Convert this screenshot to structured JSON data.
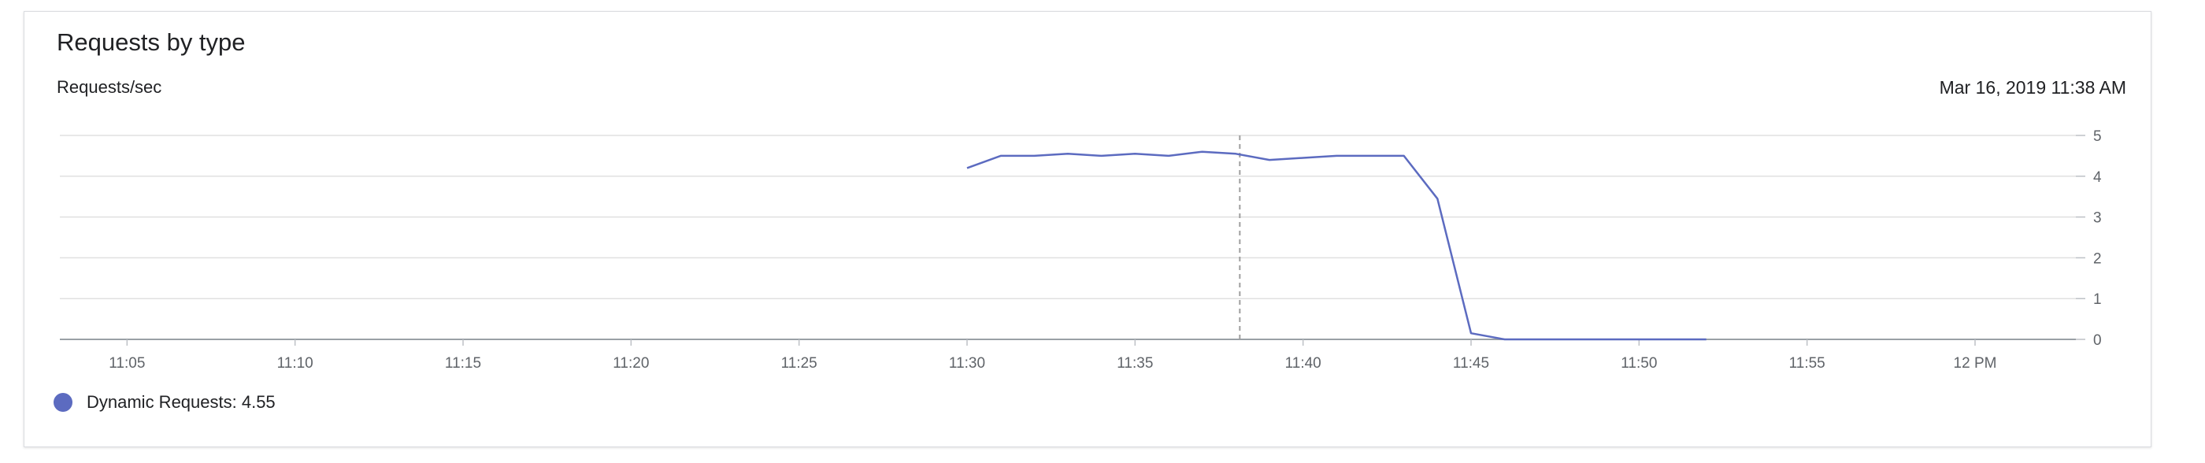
{
  "panel": {
    "title": "Requests by type",
    "timestamp": "Mar 16, 2019 11:38 AM",
    "legend_label": "Dynamic Requests: 4.55"
  },
  "chart_data": {
    "type": "line",
    "title": "Requests by type",
    "ylabel": "Requests/sec",
    "xlabel": "",
    "x_ticks": [
      "11:05",
      "11:10",
      "11:15",
      "11:20",
      "11:25",
      "11:30",
      "11:35",
      "11:40",
      "11:45",
      "11:50",
      "11:55",
      "12 PM"
    ],
    "y_ticks": [
      "0",
      "1",
      "2",
      "3",
      "4",
      "5"
    ],
    "xlim": [
      "11:03",
      "12:03"
    ],
    "ylim": [
      0,
      5
    ],
    "grid": true,
    "cursor_time": "11:38",
    "series": [
      {
        "name": "Dynamic Requests",
        "color": "#5c6bc0",
        "x": [
          "11:30",
          "11:31",
          "11:32",
          "11:33",
          "11:34",
          "11:35",
          "11:36",
          "11:37",
          "11:38",
          "11:39",
          "11:40",
          "11:41",
          "11:42",
          "11:43",
          "11:44",
          "11:45",
          "11:46",
          "11:47",
          "11:48",
          "11:49",
          "11:50",
          "11:51",
          "11:52"
        ],
        "values": [
          4.2,
          4.5,
          4.5,
          4.55,
          4.5,
          4.55,
          4.5,
          4.6,
          4.55,
          4.4,
          4.45,
          4.5,
          4.5,
          4.5,
          3.45,
          0.15,
          0,
          0,
          0,
          0,
          0,
          0,
          0
        ]
      }
    ]
  }
}
